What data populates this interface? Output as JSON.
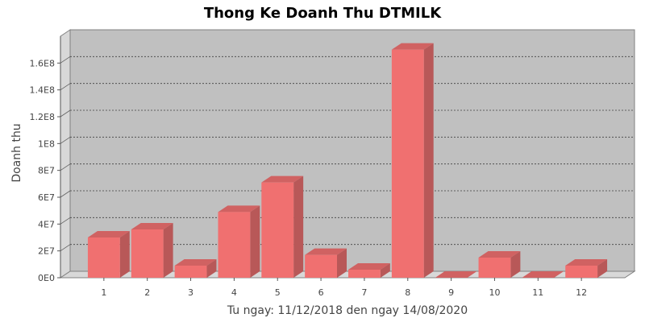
{
  "chart_data": {
    "type": "bar",
    "title": "Thong Ke Doanh Thu DTMILK",
    "xlabel": "Tu ngay: 11/12/2018 den ngay 14/08/2020",
    "ylabel": "Doanh thu",
    "categories": [
      "1",
      "2",
      "3",
      "4",
      "5",
      "6",
      "7",
      "8",
      "9",
      "10",
      "11",
      "12"
    ],
    "values": [
      30000000,
      36000000,
      9000000,
      49000000,
      71000000,
      17000000,
      6000000,
      170000000,
      0,
      15000000,
      0,
      9000000
    ],
    "ylim": [
      0,
      180000000
    ],
    "yticks": [
      0,
      20000000,
      40000000,
      60000000,
      80000000,
      100000000,
      120000000,
      140000000,
      160000000
    ],
    "ytick_labels": [
      "0E0",
      "2E7",
      "4E7",
      "6E7",
      "8E7",
      "1E8",
      "1.2E8",
      "1.4E8",
      "1.6E8"
    ],
    "grid": true,
    "bar_color": "#f07070",
    "plot_background": "#c0c0c0"
  }
}
